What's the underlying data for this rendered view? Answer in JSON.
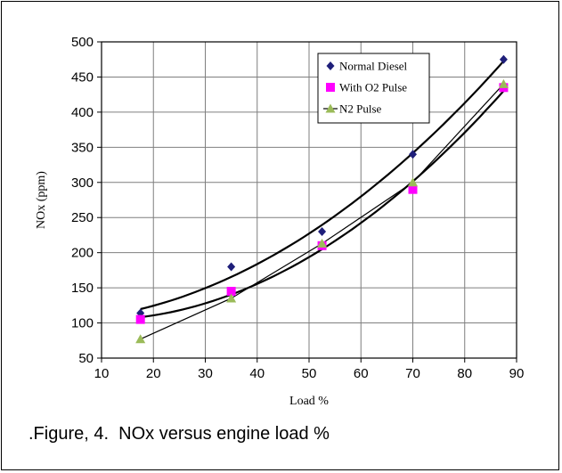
{
  "caption": ".Figure, 4.  NOx versus engine load %",
  "chart_data": {
    "type": "scatter",
    "title": "",
    "xlabel": "Load %",
    "ylabel": "NOx (ppm)",
    "xlim": [
      10,
      90
    ],
    "ylim": [
      50,
      500
    ],
    "xticks": [
      10,
      20,
      30,
      40,
      50,
      60,
      70,
      80,
      90
    ],
    "yticks": [
      50,
      100,
      150,
      200,
      250,
      300,
      350,
      400,
      450,
      500
    ],
    "grid": true,
    "legend_position": "top-right",
    "series": [
      {
        "name": "Normal Diesel",
        "marker": "diamond",
        "color": "#1f1f7a",
        "x": [
          17.5,
          35,
          52.5,
          70,
          87.5
        ],
        "y": [
          114,
          180,
          230,
          340,
          475
        ],
        "trend": "curve"
      },
      {
        "name": "With O2 Pulse",
        "marker": "square",
        "color": "#ff00ff",
        "x": [
          17.5,
          35,
          52.5,
          70,
          87.5
        ],
        "y": [
          105,
          145,
          210,
          290,
          435
        ],
        "trend": "curve"
      },
      {
        "name": "N2 Pulse",
        "marker": "triangle",
        "color": "#9bbb59",
        "x": [
          17.5,
          35,
          52.5,
          70,
          87.5
        ],
        "y": [
          77,
          135,
          213,
          300,
          440
        ],
        "line": "straight"
      }
    ]
  }
}
